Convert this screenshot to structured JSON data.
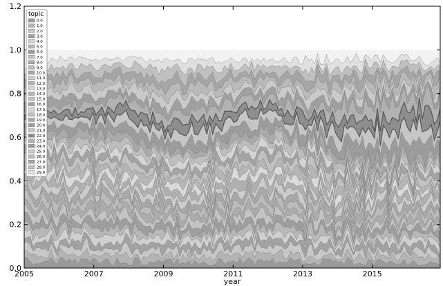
{
  "chart_data": {
    "type": "area",
    "stacked": true,
    "normalized": true,
    "xlabel": "year",
    "ylabel": "",
    "title": "",
    "x_range": [
      2005.0,
      2016.95
    ],
    "ylim": [
      0.0,
      1.2
    ],
    "x_ticks": [
      "2005",
      "2007",
      "2009",
      "2011",
      "2013",
      "2015"
    ],
    "y_ticks": [
      "0.0",
      "0.2",
      "0.4",
      "0.6",
      "0.8",
      "1.0",
      "1.2"
    ],
    "grid": false,
    "legend": {
      "title": "topic",
      "placement": "top-left",
      "entries": [
        "0.0",
        "1.0",
        "2.0",
        "3.0",
        "4.0",
        "5.0",
        "6.0",
        "7.0",
        "8.0",
        "9.0",
        "10.0",
        "11.0",
        "12.0",
        "13.0",
        "14.0",
        "15.0",
        "16.0",
        "17.0",
        "18.0",
        "19.0",
        "20.0",
        "21.0",
        "22.0",
        "23.0",
        "24.0",
        "25.0",
        "26.0",
        "27.0",
        "28.0",
        "29.0"
      ]
    },
    "series_colors": [
      "#9a9a9a",
      "#b4b4b4",
      "#c8c8c8",
      "#a2a2a2",
      "#d0d0d0",
      "#b8b8b8",
      "#9e9e9e",
      "#c4c4c4",
      "#acacac",
      "#bcbcbc",
      "#a8a8a8",
      "#cccccc",
      "#b0b0b0",
      "#dadada",
      "#b6b6b6",
      "#c2c2c2",
      "#a4a4a4",
      "#d4d4d4",
      "#bebebe",
      "#aaaaaa",
      "#9c9c9c",
      "#c6c6c6",
      "#8e8e8e",
      "#b2b2b2",
      "#a0a0a0",
      "#cacaca",
      "#bababa",
      "#a6a6a6",
      "#c0c0c0",
      "#e0e0e0"
    ],
    "cumulative_boundaries": [
      {
        "year": 2005.0,
        "top": 0.91,
        "band_upper": 0.73,
        "band_lower": 0.64
      },
      {
        "year": 2006.0,
        "top": 0.96,
        "band_upper": 0.75,
        "band_lower": 0.62
      },
      {
        "year": 2007.0,
        "top": 0.95,
        "band_upper": 0.76,
        "band_lower": 0.62
      },
      {
        "year": 2008.0,
        "top": 0.96,
        "band_upper": 0.78,
        "band_lower": 0.6
      },
      {
        "year": 2009.0,
        "top": 0.95,
        "band_upper": 0.7,
        "band_lower": 0.55
      },
      {
        "year": 2010.0,
        "top": 0.95,
        "band_upper": 0.72,
        "band_lower": 0.54
      },
      {
        "year": 2011.0,
        "top": 0.95,
        "band_upper": 0.76,
        "band_lower": 0.6
      },
      {
        "year": 2012.0,
        "top": 0.95,
        "band_upper": 0.78,
        "band_lower": 0.64
      },
      {
        "year": 2013.0,
        "top": 0.96,
        "band_upper": 0.72,
        "band_lower": 0.6
      },
      {
        "year": 2014.0,
        "top": 0.96,
        "band_upper": 0.76,
        "band_lower": 0.55
      },
      {
        "year": 2015.0,
        "top": 0.97,
        "band_upper": 0.75,
        "band_lower": 0.5
      },
      {
        "year": 2016.0,
        "top": 0.96,
        "band_upper": 0.8,
        "band_lower": 0.52
      },
      {
        "year": 2016.95,
        "top": 0.94,
        "band_upper": 0.78,
        "band_lower": 0.5
      }
    ]
  }
}
